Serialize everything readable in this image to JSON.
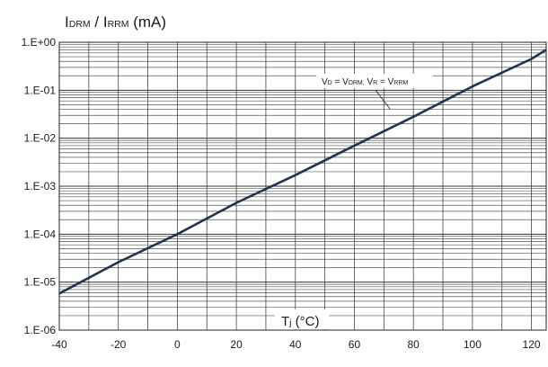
{
  "chart_data": {
    "type": "line",
    "title": {
      "parts": [
        {
          "text": "I",
          "sub": false
        },
        {
          "text": "DRM",
          "sub": true
        },
        {
          "text": " / I",
          "sub": false
        },
        {
          "text": "RRM",
          "sub": true
        },
        {
          "text": " (mA)",
          "sub": false
        }
      ]
    },
    "xlabel": {
      "parts": [
        {
          "text": "T",
          "sub": false
        },
        {
          "text": "j",
          "sub": true
        },
        {
          "text": " (°C)",
          "sub": false
        }
      ]
    },
    "annotation": {
      "parts": [
        {
          "text": "V",
          "sub": false
        },
        {
          "text": "D",
          "sub": true
        },
        {
          "text": " = V",
          "sub": false
        },
        {
          "text": "DRM,",
          "sub": true
        },
        {
          "text": " V",
          "sub": false
        },
        {
          "text": "R",
          "sub": true
        },
        {
          "text": " = V",
          "sub": false
        },
        {
          "text": "RRM",
          "sub": true
        }
      ]
    },
    "xlim": [
      -40,
      125
    ],
    "ylim": [
      1e-06,
      1
    ],
    "yscale": "log",
    "grid": true,
    "x_ticks": [
      {
        "value": -40,
        "label": "-40"
      },
      {
        "value": -20,
        "label": "-20"
      },
      {
        "value": 0,
        "label": "0"
      },
      {
        "value": 20,
        "label": "20"
      },
      {
        "value": 40,
        "label": "40"
      },
      {
        "value": 60,
        "label": "60"
      },
      {
        "value": 80,
        "label": "80"
      },
      {
        "value": 100,
        "label": "100"
      },
      {
        "value": 120,
        "label": "120"
      }
    ],
    "y_ticks": [
      {
        "value": 1,
        "label": "1.E+00"
      },
      {
        "value": 0.1,
        "label": "1.E-01"
      },
      {
        "value": 0.01,
        "label": "1.E-02"
      },
      {
        "value": 0.001,
        "label": "1.E-03"
      },
      {
        "value": 0.0001,
        "label": "1.E-04"
      },
      {
        "value": 1e-05,
        "label": "1.E-05"
      },
      {
        "value": 1e-06,
        "label": "1.E-06"
      }
    ],
    "series": [
      {
        "color": "#1f3352",
        "x": [
          -40,
          -20,
          0,
          20,
          40,
          60,
          80,
          100,
          120,
          125
        ],
        "y": [
          5.8e-06,
          2.6e-05,
          0.0001,
          0.00045,
          0.0017,
          0.007,
          0.028,
          0.12,
          0.45,
          0.7
        ]
      }
    ]
  }
}
